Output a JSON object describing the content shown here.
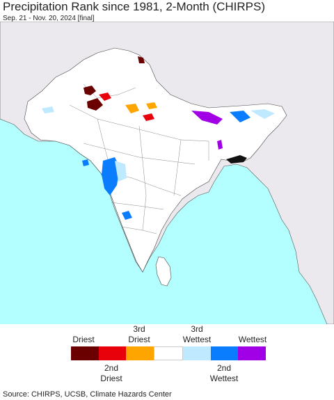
{
  "title": "Precipitation Rank since 1981, 2-Month (CHIRPS)",
  "subtitle": "Sep. 21 - Nov. 20, 2024 [final]",
  "legend": {
    "top_labels": [
      {
        "text": "Driest",
        "sub": ""
      },
      {
        "text": "3rd",
        "sub": "Driest"
      },
      {
        "text": "3rd",
        "sub": "Wettest"
      },
      {
        "text": "Wettest",
        "sub": ""
      }
    ],
    "bottom_labels": [
      {
        "text": "2nd",
        "sub": "Driest"
      },
      {
        "text": "2nd",
        "sub": "Wettest"
      }
    ],
    "colors": [
      "#6b0000",
      "#e8000a",
      "#ffa500",
      "#ffffff",
      "#bfe9ff",
      "#0a7dff",
      "#a100e6"
    ]
  },
  "source": "Source: CHIRPS, UCSB, Climate Hazards Center",
  "map_colors": {
    "ocean": "#b3ffff",
    "land_outside": "#ece9ee",
    "land_region": "#ffffff",
    "border": "#333333"
  }
}
